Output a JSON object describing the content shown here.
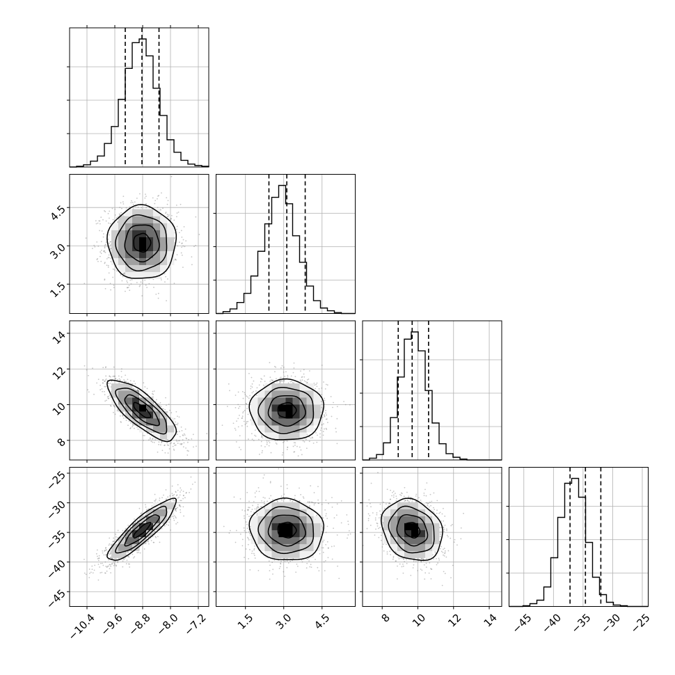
{
  "chart_data": {
    "type": "corner",
    "parameters": [
      {
        "index": 0,
        "range": [
          -10.9,
          -6.9
        ],
        "ticks": [
          -10.4,
          -9.6,
          -8.8,
          -8.0,
          -7.2
        ],
        "tick_labels": [
          "−10.4",
          "−9.6",
          "−8.8",
          "−8.0",
          "−7.2"
        ],
        "quantiles": [
          -9.3,
          -8.82,
          -8.33
        ]
      },
      {
        "index": 1,
        "range": [
          0.35,
          5.8
        ],
        "ticks": [
          1.5,
          3.0,
          4.5
        ],
        "tick_labels": [
          "1.5",
          "3.0",
          "4.5"
        ],
        "quantiles": [
          2.42,
          3.12,
          3.84
        ]
      },
      {
        "index": 2,
        "range": [
          6.9,
          14.7
        ],
        "ticks": [
          8,
          10,
          12,
          14
        ],
        "tick_labels": [
          "8",
          "10",
          "12",
          "14"
        ],
        "quantiles": [
          8.9,
          9.68,
          10.6
        ]
      },
      {
        "index": 3,
        "range": [
          -47.5,
          -24.0
        ],
        "ticks": [
          -45,
          -40,
          -35,
          -30,
          -25
        ],
        "tick_labels": [
          "−45",
          "−40",
          "−35",
          "−30",
          "−25"
        ],
        "quantiles": [
          -37.2,
          -34.6,
          -32.0
        ]
      }
    ],
    "histograms": [
      {
        "param": 0,
        "edges_start": -10.9,
        "bin_width": 0.2,
        "counts": [
          0,
          1,
          3,
          8,
          15,
          32,
          55,
          92,
          134,
          169,
          174,
          151,
          107,
          70,
          37,
          20,
          9,
          4,
          2,
          1
        ]
      },
      {
        "param": 1,
        "edges_start": 0.35,
        "bin_width": 0.2725,
        "counts": [
          0,
          2,
          5,
          12,
          22,
          41,
          68,
          98,
          127,
          140,
          120,
          85,
          56,
          30,
          14,
          6,
          3,
          1,
          0,
          0
        ]
      },
      {
        "param": 2,
        "edges_start": 6.9,
        "bin_width": 0.39,
        "counts": [
          0,
          2,
          6,
          19,
          47,
          92,
          134,
          142,
          121,
          77,
          41,
          18,
          7,
          3,
          1,
          0,
          0,
          0,
          0,
          0
        ]
      },
      {
        "param": 3,
        "edges_start": -47.5,
        "bin_width": 1.175,
        "counts": [
          0,
          0,
          1,
          4,
          9,
          28,
          70,
          128,
          177,
          184,
          157,
          92,
          42,
          17,
          6,
          2,
          1,
          0,
          0,
          0
        ]
      }
    ],
    "means": [
      -8.82,
      3.12,
      9.68,
      -34.6
    ],
    "sds": [
      0.49,
      0.72,
      0.85,
      2.6
    ],
    "correlations": [
      [
        1.0,
        0.0,
        -0.78,
        0.88
      ],
      [
        0.0,
        1.0,
        0.0,
        -0.05
      ],
      [
        -0.78,
        0.0,
        1.0,
        -0.2
      ],
      [
        0.88,
        -0.05,
        -0.2,
        1.0
      ]
    ],
    "contour_levels_sigma": [
      0.5,
      1.0,
      1.5,
      2.0
    ],
    "grid": true,
    "colors": {
      "density": "#000000",
      "scatter": "#7f7f7f",
      "grid": "#b0b0b0",
      "line": "#000000"
    }
  }
}
